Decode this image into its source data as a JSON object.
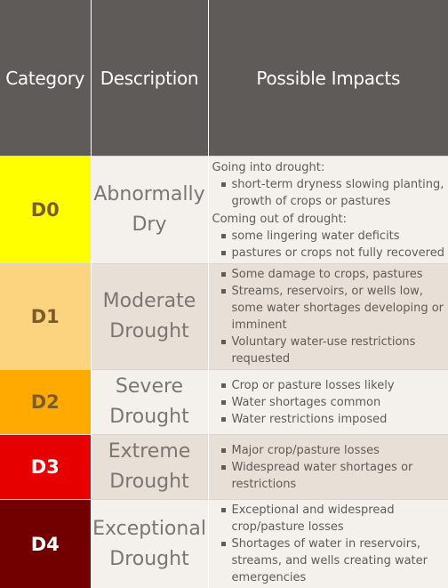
{
  "table": {
    "headers": [
      "Category",
      "Description",
      "Possible Impacts"
    ],
    "rows": [
      {
        "category": "D0",
        "description_line1": "Abnormally",
        "description_line2": "Dry",
        "color": "#ffff00",
        "text_color": "#7b5d28",
        "groups": [
          {
            "label": "Going into drought:",
            "items": [
              "short-term dryness slowing planting, growth of crops or pastures"
            ]
          },
          {
            "label": "Coming out of drought:",
            "items": [
              "some lingering water deficits",
              "pastures or crops not fully recovered"
            ]
          }
        ]
      },
      {
        "category": "D1",
        "description_line1": "Moderate",
        "description_line2": "Drought",
        "color": "#fcd37f",
        "text_color": "#7b5d28",
        "items": [
          "Some damage to crops, pastures",
          "Streams, reservoirs, or wells low, some water shortages developing or imminent",
          "Voluntary water-use restrictions requested"
        ]
      },
      {
        "category": "D2",
        "description_line1": "Severe",
        "description_line2": "Drought",
        "color": "#ffaa00",
        "text_color": "#7b5d28",
        "items": [
          "Crop or pasture losses likely",
          "Water shortages common",
          "Water restrictions imposed"
        ]
      },
      {
        "category": "D3",
        "description_line1": "Extreme",
        "description_line2": "Drought",
        "color": "#e60000",
        "text_color": "#ffffff",
        "items": [
          "Major crop/pasture losses",
          "Widespread water shortages or restrictions"
        ]
      },
      {
        "category": "D4",
        "description_line1": "Exceptional",
        "description_line2": "Drought",
        "color": "#730000",
        "text_color": "#ffffff",
        "items": [
          "Exceptional and widespread crop/pasture losses",
          "Shortages of water in reservoirs, streams, and wells creating water emergencies"
        ]
      }
    ]
  }
}
